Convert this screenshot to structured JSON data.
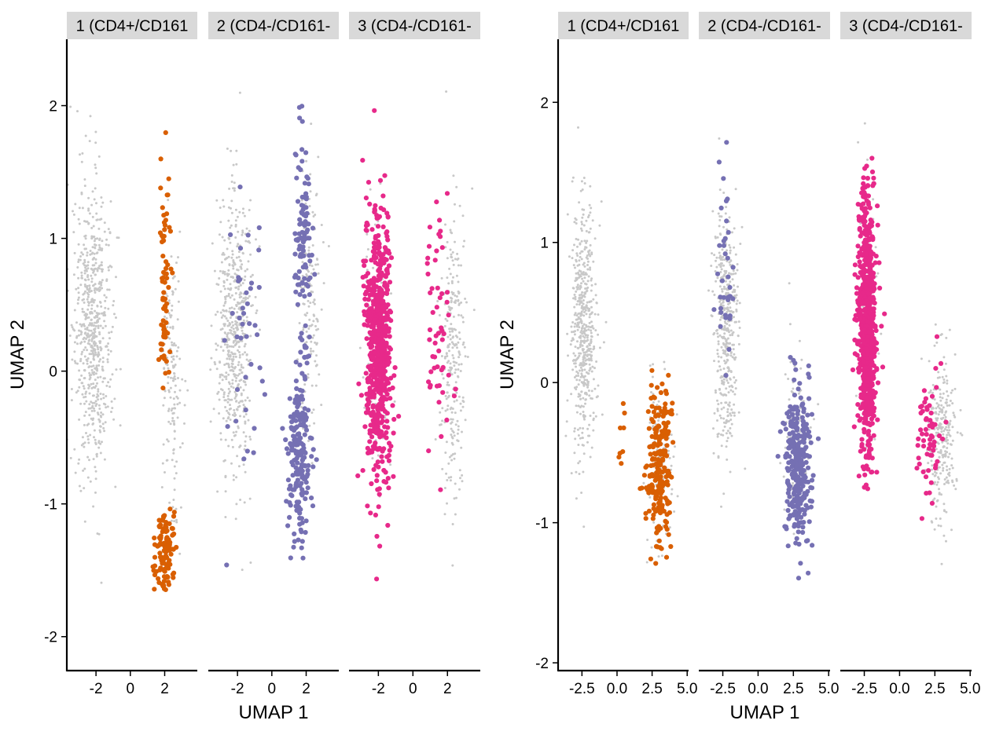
{
  "chart_data": [
    {
      "type": "scatter",
      "xlabel": "UMAP 1",
      "ylabel": "UMAP 2",
      "ylim": [
        -2.25,
        2.5
      ],
      "y_ticks": [
        -2,
        -1,
        0,
        1,
        2
      ],
      "x_ticks": [
        -2,
        0,
        2
      ],
      "x_tick_labels": [
        "-2",
        "0",
        "2"
      ],
      "background_color": "#c8c8c8",
      "facets": [
        {
          "strip_label": "1 (CD4+/CD161",
          "xlim": [
            -3.7,
            3.9
          ],
          "highlight_color": "#d95f02",
          "background_clusters": [
            {
              "cx": -2.2,
              "cy": 0.3,
              "sx": 1.0,
              "sy": 0.95,
              "n": 650
            },
            {
              "cx": 2.5,
              "cy": 0.0,
              "sx": 0.6,
              "sy": 1.0,
              "n": 150
            }
          ],
          "highlight_clusters": [
            {
              "cx": 2.0,
              "cy": 0.6,
              "sx": 0.3,
              "sy": 0.85,
              "n": 70
            },
            {
              "cx": 2.0,
              "cy": -1.35,
              "sx": 0.6,
              "sy": 0.28,
              "n": 110
            }
          ]
        },
        {
          "strip_label": "2 (CD4-/CD161-",
          "xlim": [
            -3.7,
            3.9
          ],
          "highlight_color": "#7570b3",
          "background_clusters": [
            {
              "cx": -2.2,
              "cy": 0.3,
              "sx": 0.9,
              "sy": 0.95,
              "n": 550
            },
            {
              "cx": 2.2,
              "cy": 0.6,
              "sx": 0.6,
              "sy": 0.9,
              "n": 150
            }
          ],
          "highlight_clusters": [
            {
              "cx": 1.6,
              "cy": -0.6,
              "sx": 0.7,
              "sy": 0.6,
              "n": 200
            },
            {
              "cx": 1.8,
              "cy": 1.0,
              "sx": 0.45,
              "sy": 0.75,
              "n": 110
            },
            {
              "cx": -1.5,
              "cy": 0.2,
              "sx": 1.0,
              "sy": 1.0,
              "n": 40
            }
          ]
        },
        {
          "strip_label": "3 (CD4-/CD161-",
          "xlim": [
            -3.7,
            3.9
          ],
          "highlight_color": "#e7298a",
          "background_clusters": [
            {
              "cx": 2.3,
              "cy": 0.2,
              "sx": 0.65,
              "sy": 1.05,
              "n": 260
            },
            {
              "cx": -2.0,
              "cy": 0.3,
              "sx": 0.8,
              "sy": 0.9,
              "n": 120
            }
          ],
          "highlight_clusters": [
            {
              "cx": -2.0,
              "cy": 0.2,
              "sx": 0.75,
              "sy": 0.95,
              "n": 620
            },
            {
              "cx": 1.5,
              "cy": 0.3,
              "sx": 0.9,
              "sy": 0.9,
              "n": 55
            }
          ]
        }
      ]
    },
    {
      "type": "scatter",
      "xlabel": "UMAP 1",
      "ylabel": "UMAP 2",
      "ylim": [
        -2.05,
        2.45
      ],
      "y_ticks": [
        -2,
        -1,
        0,
        1,
        2
      ],
      "x_ticks": [
        -2.5,
        0.0,
        2.5,
        5.0
      ],
      "x_tick_labels": [
        "-2.5",
        "0.0",
        "2.5",
        "5.0"
      ],
      "background_color": "#c8c8c8",
      "facets": [
        {
          "strip_label": "1 (CD4+/CD161",
          "xlim": [
            -4.2,
            5.1
          ],
          "highlight_color": "#d95f02",
          "background_clusters": [
            {
              "cx": -2.4,
              "cy": 0.4,
              "sx": 0.8,
              "sy": 0.8,
              "n": 520
            },
            {
              "cx": 3.1,
              "cy": -0.5,
              "sx": 0.8,
              "sy": 0.55,
              "n": 120
            }
          ],
          "highlight_clusters": [
            {
              "cx": 3.0,
              "cy": -0.6,
              "sx": 0.85,
              "sy": 0.5,
              "n": 220
            },
            {
              "cx": 0.3,
              "cy": -0.5,
              "sx": 0.5,
              "sy": 0.25,
              "n": 8
            }
          ]
        },
        {
          "strip_label": "2 (CD4-/CD161-",
          "xlim": [
            -4.2,
            5.1
          ],
          "highlight_color": "#7570b3",
          "background_clusters": [
            {
              "cx": -2.3,
              "cy": 0.4,
              "sx": 0.8,
              "sy": 0.8,
              "n": 420
            },
            {
              "cx": 2.8,
              "cy": -0.4,
              "sx": 0.9,
              "sy": 0.5,
              "n": 120
            }
          ],
          "highlight_clusters": [
            {
              "cx": 2.8,
              "cy": -0.6,
              "sx": 0.95,
              "sy": 0.55,
              "n": 290
            },
            {
              "cx": -2.3,
              "cy": 0.8,
              "sx": 0.6,
              "sy": 0.7,
              "n": 35
            }
          ]
        },
        {
          "strip_label": "3 (CD4-/CD161-",
          "xlim": [
            -4.2,
            5.1
          ],
          "highlight_color": "#e7298a",
          "background_clusters": [
            {
              "cx": 3.0,
              "cy": -0.4,
              "sx": 0.9,
              "sy": 0.55,
              "n": 260
            },
            {
              "cx": -2.3,
              "cy": 0.5,
              "sx": 0.6,
              "sy": 0.8,
              "n": 80
            }
          ],
          "highlight_clusters": [
            {
              "cx": -2.3,
              "cy": 0.4,
              "sx": 0.65,
              "sy": 0.85,
              "n": 700
            },
            {
              "cx": 2.0,
              "cy": -0.4,
              "sx": 1.0,
              "sy": 0.45,
              "n": 60
            }
          ]
        }
      ]
    }
  ]
}
